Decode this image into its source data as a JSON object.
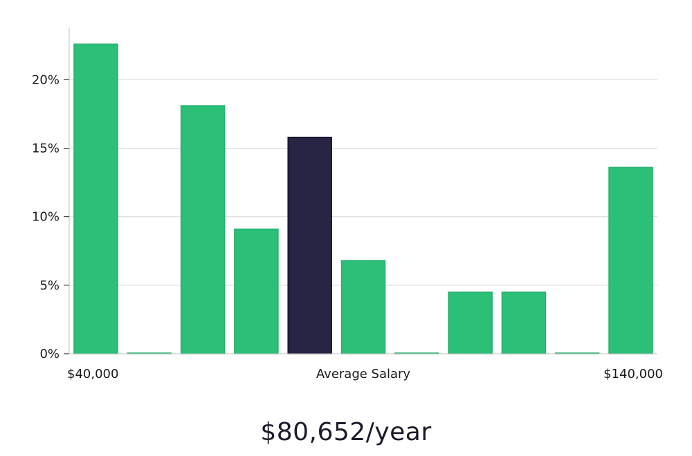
{
  "chart_data": {
    "type": "bar",
    "values": [
      22.6,
      0.05,
      18.1,
      9.1,
      15.8,
      6.8,
      0.05,
      4.5,
      4.5,
      0.05,
      13.6
    ],
    "highlight_index": 4,
    "yticks": [
      "0%",
      "5%",
      "10%",
      "15%",
      "20%"
    ],
    "ytick_values": [
      0,
      5,
      10,
      15,
      20
    ],
    "ylim": [
      0,
      23.8
    ],
    "x_left_label": "$40,000",
    "x_center_label": "Average Salary",
    "x_right_label": "$140,000",
    "grid": true,
    "colors": {
      "bar": "#2bbf78",
      "highlight": "#272444",
      "grid": "#d9d9d9",
      "axis": "#bfbfbf"
    }
  },
  "summary": {
    "salary": "$80,652/year"
  }
}
